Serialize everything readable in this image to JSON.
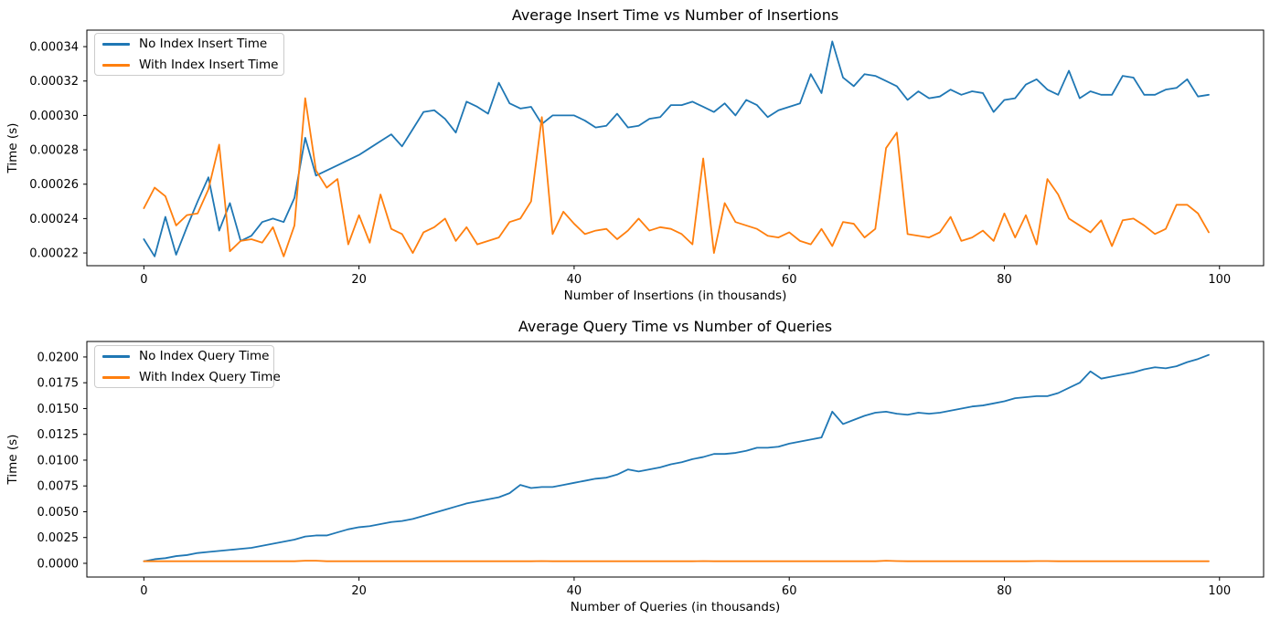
{
  "figure": {
    "background": "#ffffff"
  },
  "colors": {
    "blue": "#1f77b4",
    "orange": "#ff7f0e"
  },
  "chart_data": [
    {
      "type": "line",
      "title": "Average Insert Time vs Number of Insertions",
      "xlabel": "Number of Insertions (in thousands)",
      "ylabel": "Time (s)",
      "grid": false,
      "legend_position": "upper left",
      "x_start": 0,
      "x_step": 1,
      "x_ticks": [
        0,
        20,
        40,
        60,
        80,
        100
      ],
      "y_ticks": [
        0.00022,
        0.00024,
        0.00026,
        0.00028,
        0.0003,
        0.00032,
        0.00034
      ],
      "y_tick_labels": [
        "0.00022",
        "0.00024",
        "0.00026",
        "0.00028",
        "0.00030",
        "0.00032",
        "0.00034"
      ],
      "xlim": [
        -5.3,
        104.1
      ],
      "ylim": [
        0.0002126,
        0.0003496
      ],
      "series": [
        {
          "name": "No Index Insert Time",
          "color": "#1f77b4",
          "values": [
            0.000228,
            0.000218,
            0.000241,
            0.000219,
            0.000235,
            0.00025,
            0.000264,
            0.000233,
            0.000249,
            0.000227,
            0.00023,
            0.000238,
            0.00024,
            0.000238,
            0.000252,
            0.000287,
            0.000265,
            0.000268,
            0.000271,
            0.000274,
            0.000277,
            0.000281,
            0.000285,
            0.000289,
            0.000282,
            0.000292,
            0.000302,
            0.000303,
            0.000298,
            0.00029,
            0.000308,
            0.000305,
            0.000301,
            0.000319,
            0.000307,
            0.000304,
            0.000305,
            0.000295,
            0.0003,
            0.0003,
            0.0003,
            0.000297,
            0.000293,
            0.000294,
            0.000301,
            0.000293,
            0.000294,
            0.000298,
            0.000299,
            0.000306,
            0.000306,
            0.000308,
            0.000305,
            0.000302,
            0.000307,
            0.0003,
            0.000309,
            0.000306,
            0.000299,
            0.000303,
            0.000305,
            0.000307,
            0.000324,
            0.000313,
            0.000343,
            0.000322,
            0.000317,
            0.000324,
            0.000323,
            0.00032,
            0.000317,
            0.000309,
            0.000314,
            0.00031,
            0.000311,
            0.000315,
            0.000312,
            0.000314,
            0.000313,
            0.000302,
            0.000309,
            0.00031,
            0.000318,
            0.000321,
            0.000315,
            0.000312,
            0.000326,
            0.00031,
            0.000314,
            0.000312,
            0.000312,
            0.000323,
            0.000322,
            0.000312,
            0.000312,
            0.000315,
            0.000316,
            0.000321,
            0.000311,
            0.000312
          ]
        },
        {
          "name": "With Index Insert Time",
          "color": "#ff7f0e",
          "values": [
            0.000246,
            0.000258,
            0.000253,
            0.000236,
            0.000242,
            0.000243,
            0.000257,
            0.000283,
            0.000221,
            0.000227,
            0.000228,
            0.000226,
            0.000235,
            0.000218,
            0.000236,
            0.00031,
            0.000268,
            0.000258,
            0.000263,
            0.000225,
            0.000242,
            0.000226,
            0.000254,
            0.000234,
            0.000231,
            0.00022,
            0.000232,
            0.000235,
            0.00024,
            0.000227,
            0.000235,
            0.000225,
            0.000227,
            0.000229,
            0.000238,
            0.00024,
            0.00025,
            0.000299,
            0.000231,
            0.000244,
            0.000237,
            0.000231,
            0.000233,
            0.000234,
            0.000228,
            0.000233,
            0.00024,
            0.000233,
            0.000235,
            0.000234,
            0.000231,
            0.000225,
            0.000275,
            0.00022,
            0.000249,
            0.000238,
            0.000236,
            0.000234,
            0.00023,
            0.000229,
            0.000232,
            0.000227,
            0.000225,
            0.000234,
            0.000224,
            0.000238,
            0.000237,
            0.000229,
            0.000234,
            0.000281,
            0.00029,
            0.000231,
            0.00023,
            0.000229,
            0.000232,
            0.000241,
            0.000227,
            0.000229,
            0.000233,
            0.000227,
            0.000243,
            0.000229,
            0.000242,
            0.000225,
            0.000263,
            0.000254,
            0.00024,
            0.000236,
            0.000232,
            0.000239,
            0.000224,
            0.000239,
            0.00024,
            0.000236,
            0.000231,
            0.000234,
            0.000248,
            0.000248,
            0.000243,
            0.000232
          ]
        }
      ]
    },
    {
      "type": "line",
      "title": "Average Query Time vs Number of Queries",
      "xlabel": "Number of Queries (in thousands)",
      "ylabel": "Time (s)",
      "grid": false,
      "legend_position": "upper left",
      "x_start": 0,
      "x_step": 1,
      "x_ticks": [
        0,
        20,
        40,
        60,
        80,
        100
      ],
      "y_ticks": [
        0.0,
        0.0025,
        0.005,
        0.0075,
        0.01,
        0.0125,
        0.015,
        0.0175,
        0.02
      ],
      "y_tick_labels": [
        "0.0000",
        "0.0025",
        "0.0050",
        "0.0075",
        "0.0100",
        "0.0125",
        "0.0150",
        "0.0175",
        "0.0200"
      ],
      "xlim": [
        -5.3,
        104.1
      ],
      "ylim": [
        -0.00133,
        0.0215
      ],
      "series": [
        {
          "name": "No Index Query Time",
          "color": "#1f77b4",
          "values": [
            0.0002,
            0.0004,
            0.0005,
            0.0007,
            0.0008,
            0.001,
            0.0011,
            0.0012,
            0.0013,
            0.0014,
            0.0015,
            0.0017,
            0.0019,
            0.0021,
            0.0023,
            0.0026,
            0.0027,
            0.0027,
            0.003,
            0.0033,
            0.0035,
            0.0036,
            0.0038,
            0.004,
            0.0041,
            0.0043,
            0.0046,
            0.0049,
            0.0052,
            0.0055,
            0.0058,
            0.006,
            0.0062,
            0.0064,
            0.0068,
            0.0076,
            0.0073,
            0.0074,
            0.0074,
            0.0076,
            0.0078,
            0.008,
            0.0082,
            0.0083,
            0.0086,
            0.0091,
            0.0089,
            0.0091,
            0.0093,
            0.0096,
            0.0098,
            0.0101,
            0.0103,
            0.0106,
            0.0106,
            0.0107,
            0.0109,
            0.0112,
            0.0112,
            0.0113,
            0.0116,
            0.0118,
            0.012,
            0.0122,
            0.0147,
            0.0135,
            0.0139,
            0.0143,
            0.0146,
            0.0147,
            0.0145,
            0.0144,
            0.0146,
            0.0145,
            0.0146,
            0.0148,
            0.015,
            0.0152,
            0.0153,
            0.0155,
            0.0157,
            0.016,
            0.0161,
            0.0162,
            0.0162,
            0.0165,
            0.017,
            0.0175,
            0.0186,
            0.0179,
            0.0181,
            0.0183,
            0.0185,
            0.0188,
            0.019,
            0.0189,
            0.0191,
            0.0195,
            0.0198,
            0.0202
          ]
        },
        {
          "name": "With Index Query Time",
          "color": "#ff7f0e",
          "values": [
            0.0002,
            0.0002,
            0.0002,
            0.0002,
            0.0002,
            0.0002,
            0.0002,
            0.0002,
            0.0002,
            0.0002,
            0.0002,
            0.0002,
            0.0002,
            0.0002,
            0.0002,
            0.00025,
            0.00025,
            0.0002,
            0.0002,
            0.0002,
            0.0002,
            0.0002,
            0.0002,
            0.0002,
            0.0002,
            0.0002,
            0.0002,
            0.0002,
            0.0002,
            0.0002,
            0.0002,
            0.0002,
            0.0002,
            0.0002,
            0.0002,
            0.0002,
            0.0002,
            0.00022,
            0.0002,
            0.0002,
            0.0002,
            0.0002,
            0.0002,
            0.0002,
            0.0002,
            0.0002,
            0.0002,
            0.0002,
            0.0002,
            0.0002,
            0.0002,
            0.0002,
            0.00022,
            0.0002,
            0.0002,
            0.0002,
            0.0002,
            0.0002,
            0.0002,
            0.0002,
            0.0002,
            0.0002,
            0.0002,
            0.0002,
            0.0002,
            0.0002,
            0.0002,
            0.0002,
            0.0002,
            0.00025,
            0.00022,
            0.0002,
            0.0002,
            0.0002,
            0.0002,
            0.0002,
            0.0002,
            0.0002,
            0.0002,
            0.0002,
            0.0002,
            0.0002,
            0.0002,
            0.00022,
            0.00022,
            0.0002,
            0.0002,
            0.0002,
            0.0002,
            0.0002,
            0.0002,
            0.0002,
            0.0002,
            0.0002,
            0.0002,
            0.0002,
            0.0002,
            0.0002,
            0.0002,
            0.0002
          ]
        }
      ]
    }
  ]
}
